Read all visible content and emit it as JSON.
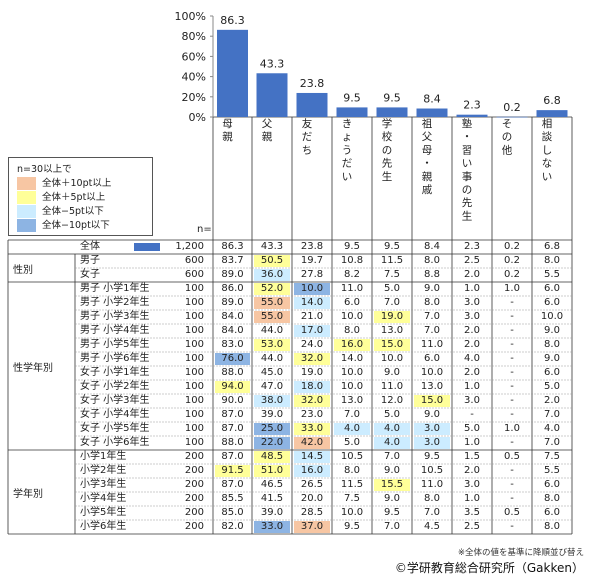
{
  "chart_data": {
    "type": "bar",
    "categories": [
      "母親",
      "父親",
      "友だち",
      "きょうだい",
      "学校の先生",
      "祖父母・親戚",
      "塾・習い事の先生",
      "その他",
      "相談しない"
    ],
    "values": [
      86.3,
      43.3,
      23.8,
      9.5,
      9.5,
      8.4,
      2.3,
      0.2,
      6.8
    ],
    "ylim": [
      0,
      100
    ],
    "yticks": [
      "0%",
      "20%",
      "40%",
      "60%",
      "80%",
      "100%"
    ],
    "bar_color": "#4472c4"
  },
  "legend": {
    "n_note": "n=30以上で",
    "items": [
      {
        "label": "全体＋10pt以上",
        "color": "#f7c6a3"
      },
      {
        "label": "全体＋5pt以上",
        "color": "#ffff99"
      },
      {
        "label": "全体−5pt以下",
        "color": "#ccecff"
      },
      {
        "label": "全体−10pt以下",
        "color": "#8db4e3"
      }
    ]
  },
  "n_header": "n=",
  "highlight_colors": {
    "p10": "#f7c6a3",
    "p5": "#ffff99",
    "m5": "#ccecff",
    "m10": "#8db4e3"
  },
  "total_row": {
    "label": "全体",
    "n": "1,200",
    "values": [
      "86.3",
      "43.3",
      "23.8",
      "9.5",
      "9.5",
      "8.4",
      "2.3",
      "0.2",
      "6.8"
    ]
  },
  "groups": [
    {
      "label": "性別",
      "rows": [
        {
          "label": "男子",
          "n": "600",
          "values": [
            "83.7",
            "50.5",
            "19.7",
            "10.8",
            "11.5",
            "8.0",
            "2.5",
            "0.2",
            "8.0"
          ],
          "hl": [
            "",
            "p5",
            "",
            "",
            "",
            "",
            "",
            "",
            ""
          ]
        },
        {
          "label": "女子",
          "n": "600",
          "values": [
            "89.0",
            "36.0",
            "27.8",
            "8.2",
            "7.5",
            "8.8",
            "2.0",
            "0.2",
            "5.5"
          ],
          "hl": [
            "",
            "m5",
            "",
            "",
            "",
            "",
            "",
            "",
            ""
          ]
        }
      ]
    },
    {
      "label": "性学年別",
      "rows": [
        {
          "label": "男子  小学1年生",
          "n": "100",
          "values": [
            "86.0",
            "52.0",
            "10.0",
            "11.0",
            "5.0",
            "9.0",
            "1.0",
            "1.0",
            "6.0"
          ],
          "hl": [
            "",
            "p5",
            "m10",
            "",
            "",
            "",
            "",
            "",
            ""
          ]
        },
        {
          "label": "男子  小学2年生",
          "n": "100",
          "values": [
            "89.0",
            "55.0",
            "14.0",
            "6.0",
            "7.0",
            "8.0",
            "3.0",
            "-",
            "6.0"
          ],
          "hl": [
            "",
            "p10",
            "m5",
            "",
            "",
            "",
            "",
            "",
            ""
          ]
        },
        {
          "label": "男子  小学3年生",
          "n": "100",
          "values": [
            "84.0",
            "55.0",
            "21.0",
            "10.0",
            "19.0",
            "7.0",
            "3.0",
            "-",
            "10.0"
          ],
          "hl": [
            "",
            "p10",
            "",
            "",
            "p5",
            "",
            "",
            "",
            ""
          ]
        },
        {
          "label": "男子  小学4年生",
          "n": "100",
          "values": [
            "84.0",
            "44.0",
            "17.0",
            "8.0",
            "13.0",
            "7.0",
            "2.0",
            "-",
            "9.0"
          ],
          "hl": [
            "",
            "",
            "m5",
            "",
            "",
            "",
            "",
            "",
            ""
          ]
        },
        {
          "label": "男子  小学5年生",
          "n": "100",
          "values": [
            "83.0",
            "53.0",
            "24.0",
            "16.0",
            "15.0",
            "11.0",
            "2.0",
            "-",
            "8.0"
          ],
          "hl": [
            "",
            "p5",
            "",
            "p5",
            "p5",
            "",
            "",
            "",
            ""
          ]
        },
        {
          "label": "男子  小学6年生",
          "n": "100",
          "values": [
            "76.0",
            "44.0",
            "32.0",
            "14.0",
            "10.0",
            "6.0",
            "4.0",
            "-",
            "9.0"
          ],
          "hl": [
            "m10",
            "",
            "p5",
            "",
            "",
            "",
            "",
            "",
            ""
          ]
        },
        {
          "label": "女子  小学1年生",
          "n": "100",
          "values": [
            "88.0",
            "45.0",
            "19.0",
            "10.0",
            "9.0",
            "10.0",
            "2.0",
            "-",
            "6.0"
          ],
          "hl": [
            "",
            "",
            "",
            "",
            "",
            "",
            "",
            "",
            ""
          ]
        },
        {
          "label": "女子  小学2年生",
          "n": "100",
          "values": [
            "94.0",
            "47.0",
            "18.0",
            "10.0",
            "11.0",
            "13.0",
            "1.0",
            "-",
            "5.0"
          ],
          "hl": [
            "p5",
            "",
            "m5",
            "",
            "",
            "",
            "",
            "",
            ""
          ]
        },
        {
          "label": "女子  小学3年生",
          "n": "100",
          "values": [
            "90.0",
            "38.0",
            "32.0",
            "13.0",
            "12.0",
            "15.0",
            "3.0",
            "-",
            "2.0"
          ],
          "hl": [
            "",
            "m5",
            "p5",
            "",
            "",
            "p5",
            "",
            "",
            ""
          ]
        },
        {
          "label": "女子  小学4年生",
          "n": "100",
          "values": [
            "87.0",
            "39.0",
            "23.0",
            "7.0",
            "5.0",
            "9.0",
            "-",
            "-",
            "7.0"
          ],
          "hl": [
            "",
            "",
            "",
            "",
            "",
            "",
            "",
            "",
            ""
          ]
        },
        {
          "label": "女子  小学5年生",
          "n": "100",
          "values": [
            "87.0",
            "25.0",
            "33.0",
            "4.0",
            "4.0",
            "3.0",
            "5.0",
            "1.0",
            "4.0"
          ],
          "hl": [
            "",
            "m10",
            "p5",
            "m5",
            "m5",
            "m5",
            "",
            "",
            ""
          ]
        },
        {
          "label": "女子  小学6年生",
          "n": "100",
          "values": [
            "88.0",
            "22.0",
            "42.0",
            "5.0",
            "4.0",
            "3.0",
            "1.0",
            "-",
            "7.0"
          ],
          "hl": [
            "",
            "m10",
            "p10",
            "",
            "m5",
            "m5",
            "",
            "",
            ""
          ]
        }
      ]
    },
    {
      "label": "学年別",
      "rows": [
        {
          "label": "小学1年生",
          "n": "200",
          "values": [
            "87.0",
            "48.5",
            "14.5",
            "10.5",
            "7.0",
            "9.5",
            "1.5",
            "0.5",
            "7.5"
          ],
          "hl": [
            "",
            "p5",
            "m5",
            "",
            "",
            "",
            "",
            "",
            ""
          ]
        },
        {
          "label": "小学2年生",
          "n": "200",
          "values": [
            "91.5",
            "51.0",
            "16.0",
            "8.0",
            "9.0",
            "10.5",
            "2.0",
            "-",
            "5.5"
          ],
          "hl": [
            "p5",
            "p5",
            "m5",
            "",
            "",
            "",
            "",
            "",
            ""
          ]
        },
        {
          "label": "小学3年生",
          "n": "200",
          "values": [
            "87.0",
            "46.5",
            "26.5",
            "11.5",
            "15.5",
            "11.0",
            "3.0",
            "-",
            "6.0"
          ],
          "hl": [
            "",
            "",
            "",
            "",
            "p5",
            "",
            "",
            "",
            ""
          ]
        },
        {
          "label": "小学4年生",
          "n": "200",
          "values": [
            "85.5",
            "41.5",
            "20.0",
            "7.5",
            "9.0",
            "8.0",
            "1.0",
            "-",
            "8.0"
          ],
          "hl": [
            "",
            "",
            "",
            "",
            "",
            "",
            "",
            "",
            ""
          ]
        },
        {
          "label": "小学5年生",
          "n": "200",
          "values": [
            "85.0",
            "39.0",
            "28.5",
            "10.0",
            "9.5",
            "7.0",
            "3.5",
            "0.5",
            "6.0"
          ],
          "hl": [
            "",
            "",
            "",
            "",
            "",
            "",
            "",
            "",
            ""
          ]
        },
        {
          "label": "小学6年生",
          "n": "200",
          "values": [
            "82.0",
            "33.0",
            "37.0",
            "9.5",
            "7.0",
            "4.5",
            "2.5",
            "-",
            "8.0"
          ],
          "hl": [
            "",
            "m10",
            "p10",
            "",
            "",
            "",
            "",
            "",
            ""
          ]
        }
      ]
    }
  ],
  "footnote": "※全体の値を基準に降順並び替え",
  "copyright": "©学研教育総合研究所（Gakken）"
}
